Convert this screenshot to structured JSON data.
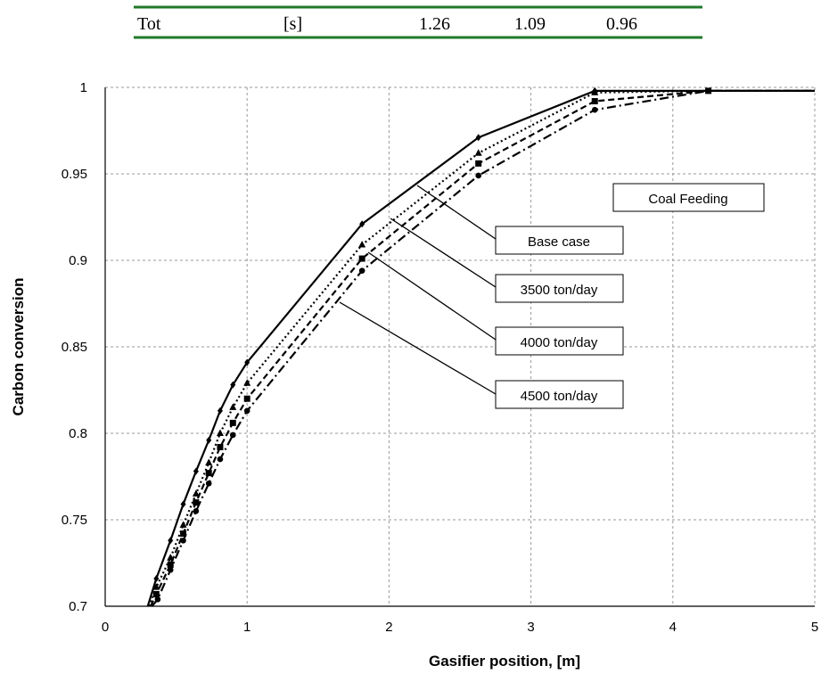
{
  "table": {
    "cells": [
      "Tot",
      "[s]",
      "1.26",
      "1.09",
      "0.96"
    ],
    "rule_color": "#1f7a2a"
  },
  "chart_data": {
    "type": "line",
    "xlabel": "Gasifier position, [m]",
    "ylabel": "Carbon conversion",
    "xlim": [
      0,
      5
    ],
    "ylim": [
      0.7,
      1.0
    ],
    "xticks": [
      "0",
      "1",
      "2",
      "3",
      "4",
      "5"
    ],
    "yticks": [
      "0.7",
      "0.75",
      "0.8",
      "0.85",
      "0.9",
      "0.95",
      "1"
    ],
    "grid": true,
    "legend_title": "Coal Feeding",
    "series": [
      {
        "name": "Base case",
        "line_style": "solid",
        "marker": "diamond",
        "x": [
          0.3,
          0.36,
          0.46,
          0.55,
          0.64,
          0.73,
          0.81,
          0.9,
          1.0,
          1.81,
          2.63,
          3.45,
          4.25,
          5.0
        ],
        "y": [
          0.7,
          0.716,
          0.738,
          0.759,
          0.778,
          0.796,
          0.813,
          0.828,
          0.841,
          0.921,
          0.971,
          0.998,
          0.998,
          0.998
        ]
      },
      {
        "name": "3500 ton/day",
        "line_style": "dotted",
        "marker": "triangle",
        "x": [
          0.31,
          0.36,
          0.46,
          0.55,
          0.64,
          0.73,
          0.81,
          0.9,
          1.0,
          1.81,
          2.63,
          3.45,
          4.25,
          5.0
        ],
        "y": [
          0.7,
          0.711,
          0.728,
          0.747,
          0.765,
          0.783,
          0.8,
          0.815,
          0.829,
          0.909,
          0.962,
          0.997,
          0.998,
          0.998
        ]
      },
      {
        "name": "4000 ton/day",
        "line_style": "dashed",
        "marker": "square",
        "x": [
          0.32,
          0.36,
          0.46,
          0.55,
          0.64,
          0.73,
          0.81,
          0.9,
          1.0,
          1.81,
          2.63,
          3.45,
          4.25,
          5.0
        ],
        "y": [
          0.7,
          0.707,
          0.724,
          0.742,
          0.76,
          0.777,
          0.792,
          0.806,
          0.82,
          0.901,
          0.956,
          0.992,
          0.998,
          0.998
        ]
      },
      {
        "name": "4500 ton/day",
        "line_style": "dashdot",
        "marker": "circle",
        "x": [
          0.33,
          0.37,
          0.46,
          0.55,
          0.64,
          0.73,
          0.81,
          0.9,
          1.0,
          1.81,
          2.63,
          3.45,
          4.25,
          5.0
        ],
        "y": [
          0.7,
          0.704,
          0.721,
          0.738,
          0.755,
          0.771,
          0.785,
          0.799,
          0.813,
          0.894,
          0.949,
          0.987,
          0.998,
          0.998
        ]
      }
    ]
  }
}
